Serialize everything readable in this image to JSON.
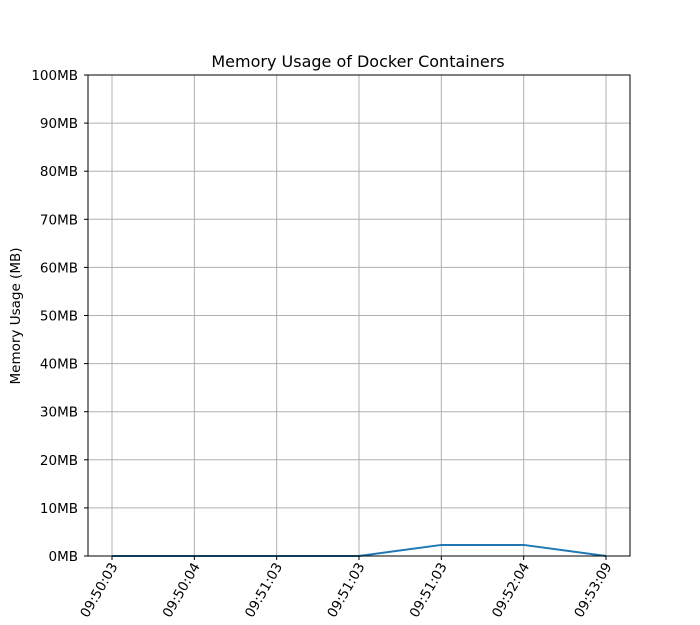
{
  "chart_data": {
    "type": "line",
    "title": "Memory Usage of Docker Containers",
    "xlabel": "",
    "ylabel": "Memory Usage (MB)",
    "x": [
      "09:50:03",
      "09:50:04",
      "09:51:03",
      "09:51:03",
      "09:51:03",
      "09:52:04",
      "09:53:09"
    ],
    "series": [
      {
        "values": [
          0,
          0,
          0,
          0,
          2.3,
          2.3,
          0
        ],
        "color": "#1f77b4"
      }
    ],
    "ylim": [
      0,
      100
    ],
    "yticks": [
      0,
      10,
      20,
      30,
      40,
      50,
      60,
      70,
      80,
      90,
      100
    ],
    "ytick_labels": [
      "0MB",
      "10MB",
      "20MB",
      "30MB",
      "40MB",
      "50MB",
      "60MB",
      "70MB",
      "80MB",
      "90MB",
      "100MB"
    ],
    "grid": true,
    "grid_color": "#b0b0b0",
    "axis_color": "#000000"
  }
}
